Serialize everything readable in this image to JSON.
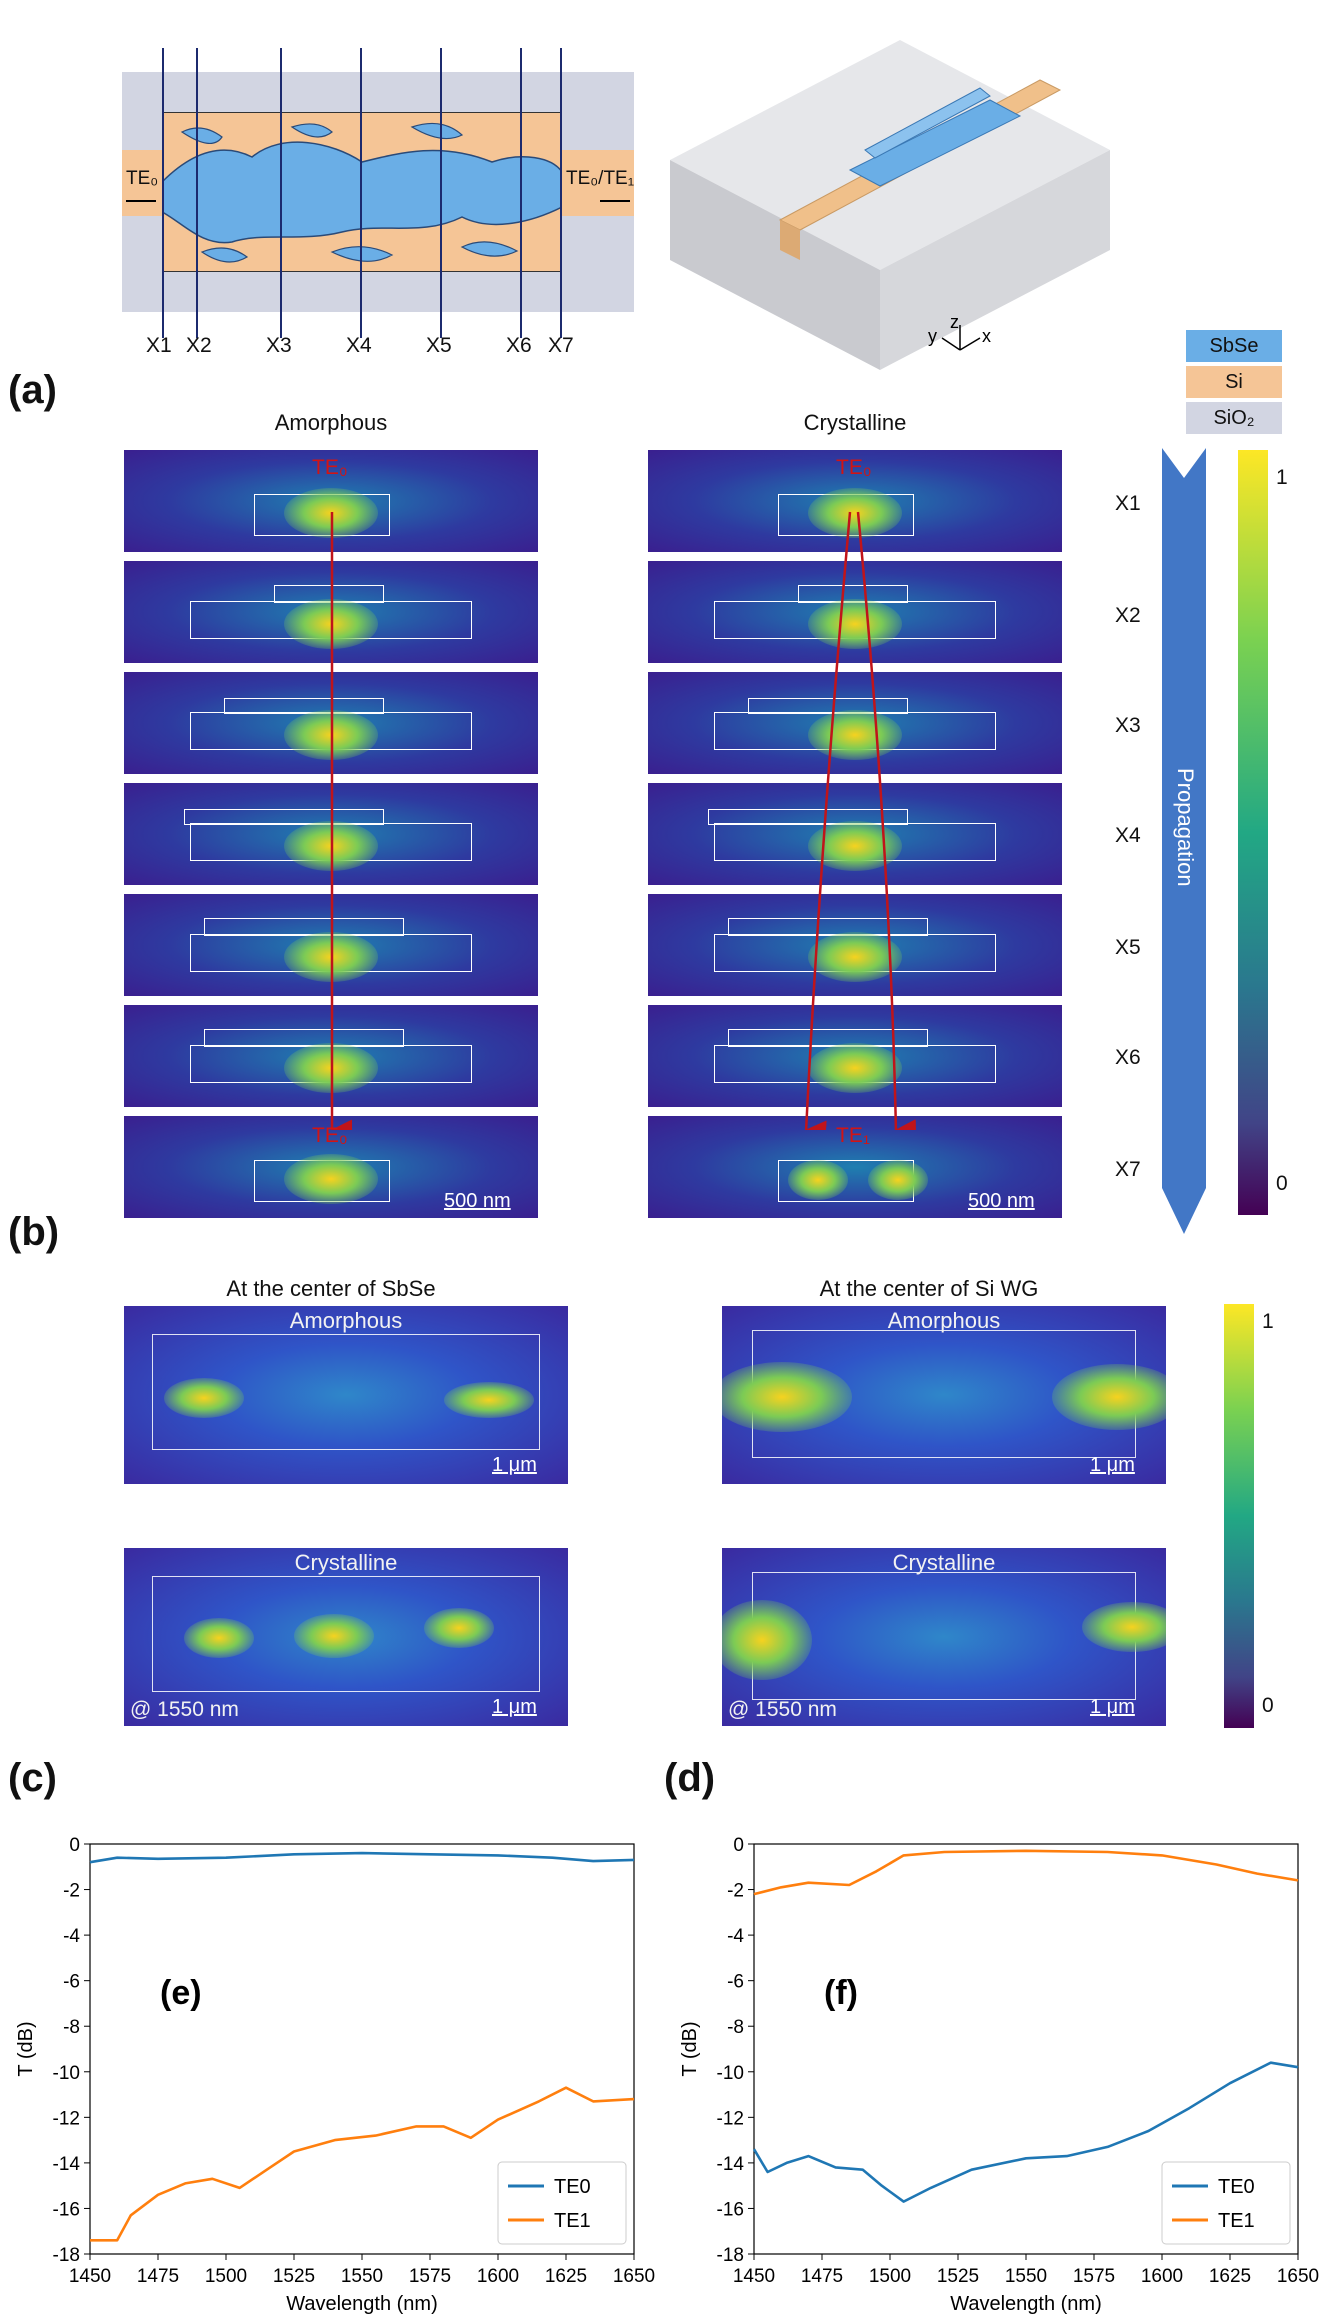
{
  "figure": {
    "panel_letters": {
      "a": "(a)",
      "b": "(b)",
      "c": "(c)",
      "d": "(d)",
      "e": "(e)",
      "f": "(f)"
    }
  },
  "panel_a": {
    "input_label": "TE₀",
    "output_label": "TE₀/TE₁",
    "cut_labels": [
      "X1",
      "X2",
      "X3",
      "X4",
      "X5",
      "X6",
      "X7"
    ],
    "axes": {
      "z": "z",
      "y": "y",
      "x": "x"
    },
    "materials": [
      {
        "name": "SbSe",
        "color": "#6aaee6"
      },
      {
        "name": "Si",
        "color": "#f5c596"
      },
      {
        "name": "SiO₂",
        "color": "#d0d3e0"
      }
    ]
  },
  "panel_b": {
    "left_title": "Amorphous",
    "right_title": "Crystalline",
    "left_top_mode": "TE₀",
    "left_bottom_mode": "TE₀",
    "right_top_mode": "TE₀",
    "right_bottom_mode": "TE₁",
    "scalebar": "500 nm",
    "row_labels": [
      "X1",
      "X2",
      "X3",
      "X4",
      "X5",
      "X6",
      "X7"
    ],
    "propagation_label": "Propagation",
    "colorbar": {
      "max": "1",
      "min": "0"
    }
  },
  "panel_cd": {
    "left_title": "At the center of SbSe",
    "right_title": "At the center of Si WG",
    "top_state": "Amorphous",
    "bottom_state": "Crystalline",
    "scalebar": "1 μm",
    "wavelength_note": "@ 1550 nm",
    "colorbar": {
      "max": "1",
      "min": "0"
    },
    "colors": {
      "accent": "#fde725",
      "low": "#3a2aa0"
    }
  },
  "chart_data": [
    {
      "type": "line",
      "panel": "(e)",
      "title": "",
      "xlabel": "Wavelength (nm)",
      "ylabel": "T (dB)",
      "xlim": [
        1450,
        1650
      ],
      "ylim": [
        -18,
        0
      ],
      "xticks": [
        1450,
        1475,
        1500,
        1525,
        1550,
        1575,
        1600,
        1625,
        1650
      ],
      "yticks": [
        0,
        -2,
        -4,
        -6,
        -8,
        -10,
        -12,
        -14,
        -16,
        -18
      ],
      "legend": "bottom-right",
      "series": [
        {
          "name": "TE0",
          "color": "#1f77b4",
          "x": [
            1450,
            1460,
            1475,
            1500,
            1525,
            1550,
            1575,
            1600,
            1620,
            1635,
            1650
          ],
          "y": [
            -0.8,
            -0.6,
            -0.65,
            -0.6,
            -0.45,
            -0.4,
            -0.45,
            -0.5,
            -0.6,
            -0.75,
            -0.7
          ]
        },
        {
          "name": "TE1",
          "color": "#ff7f0e",
          "x": [
            1450,
            1460,
            1465,
            1475,
            1485,
            1495,
            1505,
            1515,
            1525,
            1540,
            1555,
            1570,
            1580,
            1590,
            1600,
            1615,
            1625,
            1635,
            1650
          ],
          "y": [
            -17.4,
            -17.4,
            -16.3,
            -15.4,
            -14.9,
            -14.7,
            -15.1,
            -14.3,
            -13.5,
            -13.0,
            -12.8,
            -12.4,
            -12.4,
            -12.9,
            -12.1,
            -11.3,
            -10.7,
            -11.3,
            -11.2
          ]
        }
      ]
    },
    {
      "type": "line",
      "panel": "(f)",
      "title": "",
      "xlabel": "Wavelength (nm)",
      "ylabel": "T (dB)",
      "xlim": [
        1450,
        1650
      ],
      "ylim": [
        -18,
        0
      ],
      "xticks": [
        1450,
        1475,
        1500,
        1525,
        1550,
        1575,
        1600,
        1625,
        1650
      ],
      "yticks": [
        0,
        -2,
        -4,
        -6,
        -8,
        -10,
        -12,
        -14,
        -16,
        -18
      ],
      "legend": "bottom-right",
      "series": [
        {
          "name": "TE0",
          "color": "#1f77b4",
          "x": [
            1450,
            1455,
            1462,
            1470,
            1480,
            1490,
            1497,
            1505,
            1515,
            1530,
            1550,
            1565,
            1580,
            1595,
            1610,
            1625,
            1640,
            1650
          ],
          "y": [
            -13.4,
            -14.4,
            -14.0,
            -13.7,
            -14.2,
            -14.3,
            -15.0,
            -15.7,
            -15.1,
            -14.3,
            -13.8,
            -13.7,
            -13.3,
            -12.6,
            -11.6,
            -10.5,
            -9.6,
            -9.8
          ]
        },
        {
          "name": "TE1",
          "color": "#ff7f0e",
          "x": [
            1450,
            1460,
            1470,
            1485,
            1495,
            1505,
            1520,
            1550,
            1580,
            1600,
            1620,
            1635,
            1650
          ],
          "y": [
            -2.2,
            -1.9,
            -1.7,
            -1.8,
            -1.2,
            -0.5,
            -0.35,
            -0.3,
            -0.35,
            -0.5,
            -0.9,
            -1.3,
            -1.6
          ]
        }
      ]
    }
  ]
}
